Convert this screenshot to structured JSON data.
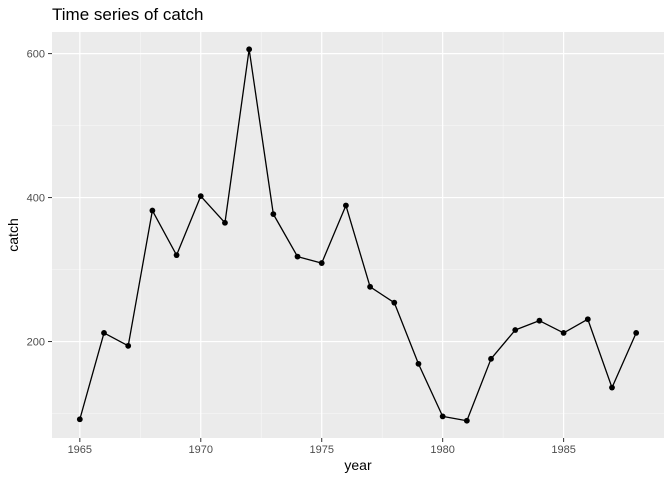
{
  "chart_data": {
    "type": "line",
    "title": "Time series of catch",
    "xlabel": "year",
    "ylabel": "catch",
    "x_ticks": [
      1965,
      1970,
      1975,
      1980,
      1985
    ],
    "y_ticks": [
      200,
      400,
      600
    ],
    "xlim": [
      1963.85,
      1989.15
    ],
    "ylim": [
      66,
      630
    ],
    "grid": true,
    "legend": "none",
    "panel_background": "#ebebeb",
    "line_color": "#000000",
    "point_color": "#000000",
    "series": [
      {
        "x": [
          1965,
          1966,
          1967,
          1968,
          1969,
          1970,
          1971,
          1972,
          1973,
          1974,
          1975,
          1976,
          1977,
          1978,
          1979,
          1980,
          1981,
          1982,
          1983,
          1984,
          1985,
          1986,
          1987,
          1988
        ],
        "y": [
          92,
          212,
          194,
          382,
          320,
          402,
          365,
          606,
          377,
          318,
          309,
          389,
          276,
          254,
          169,
          96,
          90,
          176,
          216,
          229,
          212,
          231,
          136,
          212
        ]
      }
    ]
  }
}
